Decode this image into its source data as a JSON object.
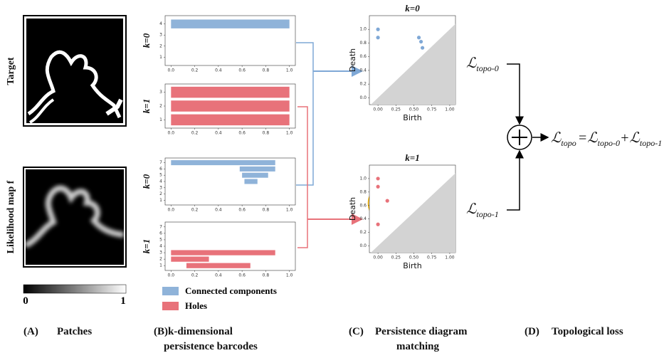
{
  "panel_a": {
    "row_labels": [
      "Target",
      "Likelihood map f"
    ],
    "colorbar_ticks": [
      0,
      1
    ]
  },
  "barcodes": [
    {
      "k_label": "k=0",
      "color": "#8fb3d9",
      "xlim": [
        -0.05,
        1.05
      ],
      "ylim": [
        0.25,
        4.75
      ],
      "xticks": [
        {
          "value": 0,
          "label": "0.0"
        },
        0.2,
        0.4,
        0.6,
        0.8,
        {
          "value": 1,
          "label": "1.0"
        }
      ],
      "yticks": [
        1,
        2,
        3,
        4
      ],
      "bars": [
        {
          "row": 4,
          "birth": 0,
          "death": 1
        }
      ]
    },
    {
      "k_label": "k=1",
      "color": "#e8727a",
      "xlim": [
        -0.05,
        1.05
      ],
      "ylim": [
        0.4,
        3.6
      ],
      "xticks": [
        {
          "value": 0,
          "label": "0.0"
        },
        0.2,
        0.4,
        0.6,
        0.8,
        {
          "value": 1,
          "label": "1.0"
        }
      ],
      "yticks": [
        1,
        2,
        3
      ],
      "bars": [
        {
          "row": 3,
          "birth": 0,
          "death": 1
        },
        {
          "row": 2,
          "birth": 0,
          "death": 1
        },
        {
          "row": 1,
          "birth": 0,
          "death": 1
        }
      ]
    },
    {
      "k_label": "k=0",
      "color": "#8fb3d9",
      "xlim": [
        -0.05,
        1.05
      ],
      "ylim": [
        0.25,
        7.75
      ],
      "xticks": [
        {
          "value": 0,
          "label": "0.0"
        },
        0.2,
        0.4,
        0.6,
        0.8,
        {
          "value": 1,
          "label": "1.0"
        }
      ],
      "yticks": [
        1,
        2,
        3,
        4,
        5,
        6,
        7
      ],
      "bars": [
        {
          "row": 7,
          "birth": 0,
          "death": 0.88
        },
        {
          "row": 6,
          "birth": 0.58,
          "death": 0.88
        },
        {
          "row": 5,
          "birth": 0.6,
          "death": 0.82
        },
        {
          "row": 4,
          "birth": 0.62,
          "death": 0.73
        }
      ]
    },
    {
      "k_label": "k=1",
      "color": "#e8727a",
      "xlim": [
        -0.05,
        1.05
      ],
      "ylim": [
        0.25,
        7.75
      ],
      "xticks": [
        {
          "value": 0,
          "label": "0.0"
        },
        0.2,
        0.4,
        0.6,
        0.8,
        {
          "value": 1,
          "label": "1.0"
        }
      ],
      "yticks": [
        1,
        2,
        3,
        4,
        5,
        6,
        7
      ],
      "bars": [
        {
          "row": 3,
          "birth": 0,
          "death": 0.88
        },
        {
          "row": 2,
          "birth": 0,
          "death": 0.32
        },
        {
          "row": 1,
          "birth": 0.13,
          "death": 0.67
        }
      ]
    }
  ],
  "legend": [
    {
      "label": "Connected components",
      "color": "#8fb3d9"
    },
    {
      "label": "Holes",
      "color": "#e8727a"
    }
  ],
  "diagrams": [
    {
      "title": "k=0",
      "x_label": "Birth",
      "y_label": "Death",
      "color": "#7fa8d6",
      "xlim": [
        -0.12,
        1.08
      ],
      "ylim": [
        -0.1,
        1.2
      ],
      "xticks": [
        {
          "value": 0,
          "label": "0.00"
        },
        0.25,
        {
          "value": 0.5,
          "label": "0.50"
        },
        0.75,
        {
          "value": 1,
          "label": "1.00"
        }
      ],
      "yticks": [
        {
          "value": 0,
          "label": "0.0"
        },
        0.2,
        0.4,
        0.6,
        0.8,
        {
          "value": 1,
          "label": "1.0"
        }
      ],
      "points": {
        "x": [
          0,
          0,
          0.57,
          0.6,
          0.62
        ],
        "y": [
          1.0,
          0.88,
          0.88,
          0.82,
          0.73
        ]
      }
    },
    {
      "title": "k=1",
      "x_label": "Birth",
      "y_label": "Death",
      "color": "#e8727a",
      "xlim": [
        -0.12,
        1.08
      ],
      "ylim": [
        -0.1,
        1.2
      ],
      "xticks": [
        {
          "value": 0,
          "label": "0.00"
        },
        0.25,
        {
          "value": 0.5,
          "label": "0.50"
        },
        0.75,
        {
          "value": 1,
          "label": "1.00"
        }
      ],
      "yticks": [
        {
          "value": 0,
          "label": "0.0"
        },
        0.2,
        0.4,
        0.6,
        0.8,
        {
          "value": 1,
          "label": "1.0"
        }
      ],
      "points": {
        "x": [
          0,
          0,
          0.13,
          0
        ],
        "y": [
          1.0,
          0.88,
          0.67,
          0.32
        ]
      }
    }
  ],
  "loss": {
    "symbol": "ℒ",
    "terms": [
      "topo-0",
      "topo-1"
    ],
    "total": "topo",
    "equals": "=",
    "plus": "+"
  },
  "captions": [
    {
      "letter": "(A)",
      "lines": [
        "Patches"
      ]
    },
    {
      "letter": "(B)",
      "lines": [
        "k-dimensional",
        "persistence barcodes"
      ]
    },
    {
      "letter": "(C)",
      "lines": [
        "Persistence diagram",
        "matching"
      ]
    },
    {
      "letter": "(D)",
      "lines": [
        "Topological loss"
      ]
    }
  ]
}
